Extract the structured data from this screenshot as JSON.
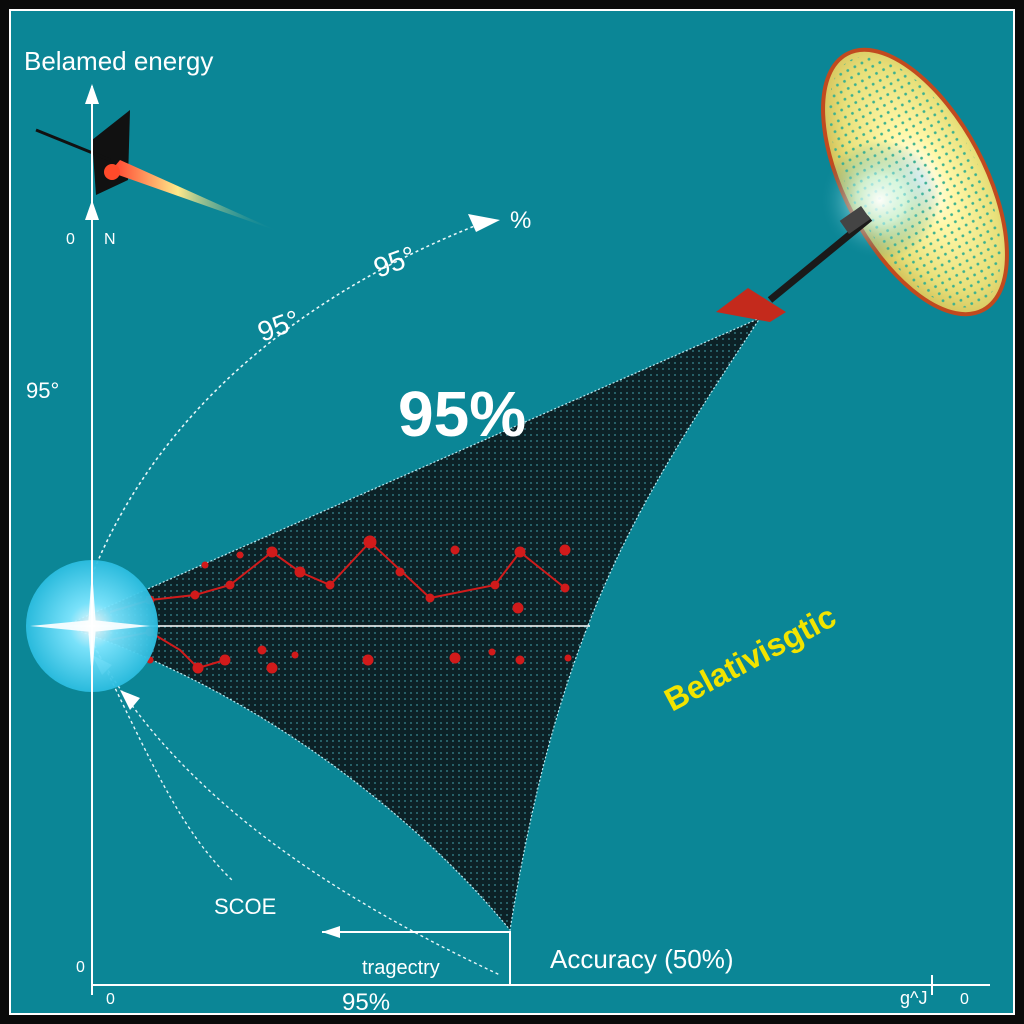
{
  "title": "Belamed energy",
  "center_label": "95%",
  "arc_labels": {
    "upper": "95°",
    "mid": "95°",
    "arrow_end": "%"
  },
  "axis": {
    "y_side_label": "95°",
    "y_top_left": "0",
    "y_top_right": "N",
    "y_origin": "0",
    "x_origin": "0",
    "x_center": "95%",
    "x_end_left": "g^J",
    "x_end_right": "0"
  },
  "annotations": {
    "scope": "SCOE",
    "trajectory": "tragectry",
    "accuracy": "Accuracy (50%)",
    "relativistic": "Belativisgtic"
  },
  "colors": {
    "background": "#0b8696",
    "frame": "#ffffff",
    "cone": "#0c2126",
    "points": "#d11b1b",
    "highlight": "#f2e400",
    "source_glow": "#37d4f2"
  }
}
